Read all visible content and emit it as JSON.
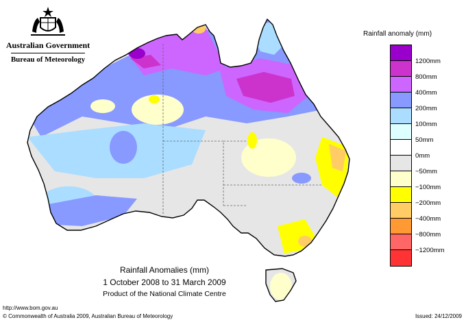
{
  "header": {
    "government": "Australian Government",
    "bureau": "Bureau of Meteorology",
    "crest_icon": "coat-of-arms-icon"
  },
  "map": {
    "subject": "Australia",
    "title": "Rainfall Anomalies (mm)",
    "period": "1 October 2008 to 31 March 2009",
    "product": "Product of the National Climate Centre",
    "outline_color": "#000000"
  },
  "legend": {
    "title": "Rainfall anomaly (mm)",
    "classes": [
      {
        "label": "1200mm",
        "color": "#9900cc"
      },
      {
        "label": "800mm",
        "color": "#cc33cc"
      },
      {
        "label": "400mm",
        "color": "#cc66ff"
      },
      {
        "label": "200mm",
        "color": "#8899ff"
      },
      {
        "label": "100mm",
        "color": "#aaddff"
      },
      {
        "label": "50mm",
        "color": "#ddffff"
      },
      {
        "label": "0mm",
        "color": "#ffffff"
      },
      {
        "label": "−50mm",
        "color": "#e6e6e6"
      },
      {
        "label": "−100mm",
        "color": "#ffffcc"
      },
      {
        "label": "−200mm",
        "color": "#ffff00"
      },
      {
        "label": "−400mm",
        "color": "#ffcc66"
      },
      {
        "label": "−800mm",
        "color": "#ff9933"
      },
      {
        "label": "−1200mm",
        "color": "#ff6666"
      }
    ],
    "extra_color": "#ff3333"
  },
  "footer": {
    "url": "http://www.bom.gov.au",
    "copyright": "© Commonwealth of Australia 2009, Australian Bureau of Meteorology",
    "issued": "Issued: 24/12/2009"
  }
}
